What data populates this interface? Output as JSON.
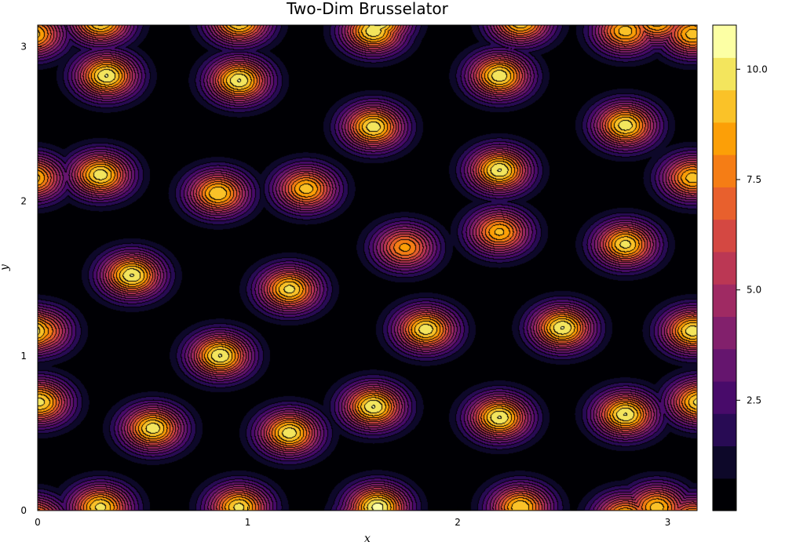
{
  "chart_data": {
    "type": "heatmap",
    "subtype": "filled-contour",
    "title": "Two-Dim Brusselator",
    "xlabel": "x",
    "ylabel": "y",
    "xlim": [
      0,
      3.14
    ],
    "ylim": [
      0,
      3.14
    ],
    "xticks": [
      0,
      1,
      2,
      3
    ],
    "xtick_labels": [
      "0",
      "1",
      "2",
      "3"
    ],
    "yticks": [
      0,
      1,
      2,
      3
    ],
    "ytick_labels": [
      "0",
      "1",
      "2",
      "3"
    ],
    "colorbar": {
      "colormap": "inferno",
      "range": [
        0,
        11
      ],
      "levels": [
        0,
        0.733,
        1.467,
        2.2,
        2.933,
        3.667,
        4.4,
        5.133,
        5.867,
        6.6,
        7.333,
        8.067,
        8.8,
        9.533,
        10.267,
        11
      ],
      "ticks": [
        2.5,
        5.0,
        7.5,
        10.0
      ],
      "tick_labels": [
        "2.5",
        "5.0",
        "7.5",
        "10.0"
      ]
    },
    "colors": [
      "#000004",
      "#0d0829",
      "#280b54",
      "#480b6a",
      "#65156e",
      "#82206c",
      "#9f2a63",
      "#bb3754",
      "#d44842",
      "#e8602d",
      "#f57d15",
      "#fc9f07",
      "#fac228",
      "#f3e55d",
      "#fcffa4"
    ],
    "grid": false,
    "legend": "none",
    "peaks": [
      {
        "x": 0.33,
        "y": 2.81,
        "value": 10.3
      },
      {
        "x": 0.96,
        "y": 2.78,
        "value": 10.3
      },
      {
        "x": 1.6,
        "y": 3.1,
        "value": 10.1
      },
      {
        "x": 2.2,
        "y": 2.81,
        "value": 10.1
      },
      {
        "x": 2.8,
        "y": 3.1,
        "value": 9.2
      },
      {
        "x": 3.12,
        "y": 3.08,
        "value": 9.2
      },
      {
        "x": 1.6,
        "y": 2.48,
        "value": 10.0
      },
      {
        "x": 2.8,
        "y": 2.49,
        "value": 10.0
      },
      {
        "x": 0.3,
        "y": 2.17,
        "value": 10.0
      },
      {
        "x": 0.86,
        "y": 2.05,
        "value": 9.5
      },
      {
        "x": 1.28,
        "y": 2.08,
        "value": 9.2
      },
      {
        "x": 2.2,
        "y": 2.2,
        "value": 10.3
      },
      {
        "x": 3.12,
        "y": 2.15,
        "value": 9.2
      },
      {
        "x": 1.75,
        "y": 1.7,
        "value": 8.3
      },
      {
        "x": 2.2,
        "y": 1.8,
        "value": 9.0
      },
      {
        "x": 2.8,
        "y": 1.72,
        "value": 9.8
      },
      {
        "x": 0.45,
        "y": 1.52,
        "value": 10.3
      },
      {
        "x": 1.2,
        "y": 1.43,
        "value": 9.8
      },
      {
        "x": 0.01,
        "y": 1.16,
        "value": 8.8
      },
      {
        "x": 1.85,
        "y": 1.17,
        "value": 10.0
      },
      {
        "x": 2.5,
        "y": 1.18,
        "value": 10.3
      },
      {
        "x": 3.12,
        "y": 1.16,
        "value": 10.0
      },
      {
        "x": 0.87,
        "y": 1.0,
        "value": 10.3
      },
      {
        "x": 0.01,
        "y": 0.7,
        "value": 9.8
      },
      {
        "x": 1.6,
        "y": 0.67,
        "value": 10.3
      },
      {
        "x": 2.2,
        "y": 0.6,
        "value": 10.3
      },
      {
        "x": 2.8,
        "y": 0.62,
        "value": 10.3
      },
      {
        "x": 0.55,
        "y": 0.53,
        "value": 10.0
      },
      {
        "x": 1.2,
        "y": 0.5,
        "value": 10.0
      },
      {
        "x": 0.3,
        "y": 0.02,
        "value": 9.8
      },
      {
        "x": 0.96,
        "y": 0.02,
        "value": 9.8
      },
      {
        "x": 1.62,
        "y": 0.02,
        "value": 10.6
      },
      {
        "x": 2.3,
        "y": 0.02,
        "value": 9.5
      },
      {
        "x": 2.95,
        "y": 0.02,
        "value": 9.2
      }
    ]
  }
}
